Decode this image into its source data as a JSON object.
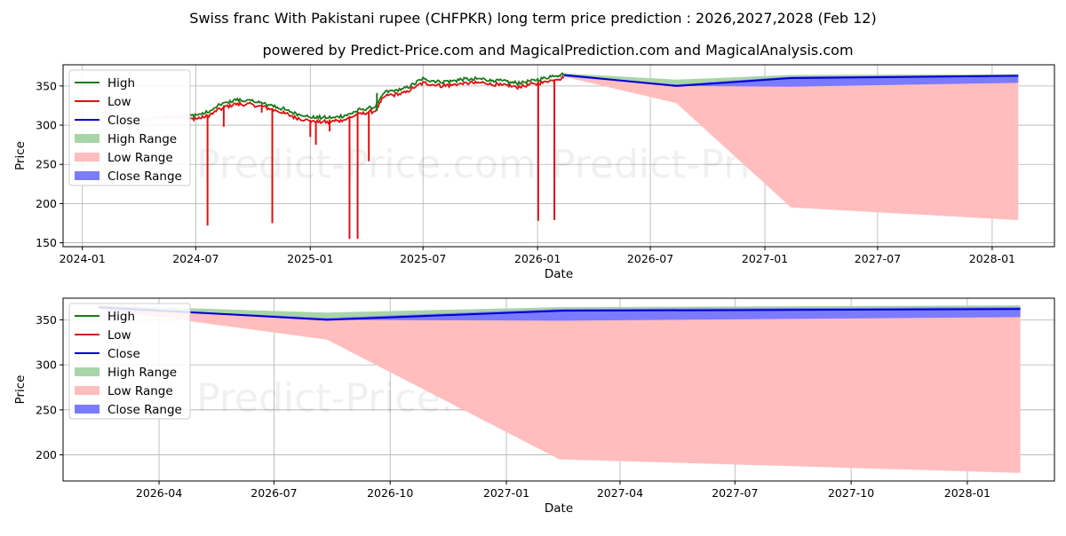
{
  "title_line1": "Swiss franc With Pakistani rupee (CHFPKR) long term price prediction : 2026,2027,2028 (Feb 12)",
  "title_line2": "powered by Predict-Price.com and MagicalPrediction.com and MagicalAnalysis.com",
  "watermark": "Predict-Price.com",
  "colors": {
    "high": "#1a7a1a",
    "low": "#e01010",
    "close": "#0000cc",
    "high_range": "#a8d5a8",
    "low_range": "#ffbdbd",
    "close_range": "#7b7bff",
    "grid": "#b0b0b0"
  },
  "legend": [
    "High",
    "Low",
    "Close",
    "High Range",
    "Low Range",
    "Close Range"
  ],
  "chart_data": [
    {
      "type": "line",
      "name": "top",
      "xlabel": "Date",
      "ylabel": "Price",
      "xlim": [
        "2023-12-01",
        "2028-04-10"
      ],
      "ylim": [
        145,
        377
      ],
      "x_ticks": [
        {
          "date": "2024-01-01",
          "label": "2024-01"
        },
        {
          "date": "2024-07-01",
          "label": "2024-07"
        },
        {
          "date": "2025-01-01",
          "label": "2025-01"
        },
        {
          "date": "2025-07-01",
          "label": "2025-07"
        },
        {
          "date": "2026-01-01",
          "label": "2026-01"
        },
        {
          "date": "2026-07-01",
          "label": "2026-07"
        },
        {
          "date": "2027-01-01",
          "label": "2027-01"
        },
        {
          "date": "2027-07-01",
          "label": "2027-07"
        },
        {
          "date": "2028-01-01",
          "label": "2028-01"
        }
      ],
      "y_ticks": [
        150,
        200,
        250,
        300,
        350
      ],
      "history": {
        "anchors": [
          [
            "2024-02-01",
            317
          ],
          [
            "2024-03-01",
            309
          ],
          [
            "2024-04-01",
            305
          ],
          [
            "2024-05-01",
            309
          ],
          [
            "2024-06-01",
            312
          ],
          [
            "2024-06-20",
            309
          ],
          [
            "2024-07-20",
            313
          ],
          [
            "2024-08-10",
            323
          ],
          [
            "2024-09-01",
            329
          ],
          [
            "2024-10-01",
            328
          ],
          [
            "2024-11-01",
            322
          ],
          [
            "2024-12-01",
            314
          ],
          [
            "2025-01-01",
            307
          ],
          [
            "2025-02-01",
            306
          ],
          [
            "2025-03-01",
            310
          ],
          [
            "2025-03-20",
            316
          ],
          [
            "2025-04-15",
            320
          ],
          [
            "2025-05-01",
            339
          ],
          [
            "2025-06-01",
            343
          ],
          [
            "2025-07-01",
            356
          ],
          [
            "2025-08-01",
            352
          ],
          [
            "2025-09-01",
            355
          ],
          [
            "2025-10-01",
            356
          ],
          [
            "2025-11-01",
            353
          ],
          [
            "2025-12-01",
            351
          ],
          [
            "2026-01-01",
            355
          ],
          [
            "2026-02-12",
            363
          ]
        ],
        "spikes": [
          [
            "2024-07-20",
            172
          ],
          [
            "2024-08-15",
            298
          ],
          [
            "2024-10-15",
            316
          ],
          [
            "2024-11-01",
            175
          ],
          [
            "2025-01-01",
            285
          ],
          [
            "2025-01-10",
            275
          ],
          [
            "2025-02-01",
            292
          ],
          [
            "2025-03-05",
            155
          ],
          [
            "2025-03-18",
            155
          ],
          [
            "2025-04-05",
            254
          ],
          [
            "2026-01-02",
            178
          ],
          [
            "2026-01-28",
            179
          ]
        ],
        "high_spikes": [
          [
            "2025-04-18",
            341
          ]
        ]
      },
      "forecast": {
        "dates": [
          "2026-02-12",
          "2026-08-12",
          "2027-02-12",
          "2028-02-12"
        ],
        "close": [
          364,
          350,
          360,
          363
        ],
        "high_range_upper": [
          366,
          358,
          364,
          365
        ],
        "close_range_upper": [
          364,
          352,
          362,
          364
        ],
        "close_range_lower": [
          362,
          350,
          349,
          354
        ],
        "low_range_lower": [
          362,
          328,
          195,
          179
        ]
      }
    },
    {
      "type": "line",
      "name": "bottom",
      "xlabel": "Date",
      "ylabel": "Price",
      "xlim": [
        "2026-01-15",
        "2028-03-10"
      ],
      "ylim": [
        171,
        374
      ],
      "x_ticks": [
        {
          "date": "2026-04-01",
          "label": "2026-04"
        },
        {
          "date": "2026-07-01",
          "label": "2026-07"
        },
        {
          "date": "2026-10-01",
          "label": "2026-10"
        },
        {
          "date": "2027-01-01",
          "label": "2027-01"
        },
        {
          "date": "2027-04-01",
          "label": "2027-04"
        },
        {
          "date": "2027-07-01",
          "label": "2027-07"
        },
        {
          "date": "2027-10-01",
          "label": "2027-10"
        },
        {
          "date": "2028-01-01",
          "label": "2028-01"
        }
      ],
      "y_ticks": [
        200,
        250,
        300,
        350
      ],
      "forecast": {
        "dates": [
          "2026-02-12",
          "2026-08-12",
          "2027-02-12",
          "2028-02-12"
        ],
        "close": [
          364,
          350,
          360,
          362
        ],
        "high_range_upper": [
          366,
          358,
          364,
          366
        ],
        "close_range_upper": [
          364,
          352,
          362,
          364
        ],
        "close_range_lower": [
          362,
          350,
          349,
          353
        ],
        "low_range_lower": [
          362,
          328,
          195,
          180
        ]
      }
    }
  ]
}
